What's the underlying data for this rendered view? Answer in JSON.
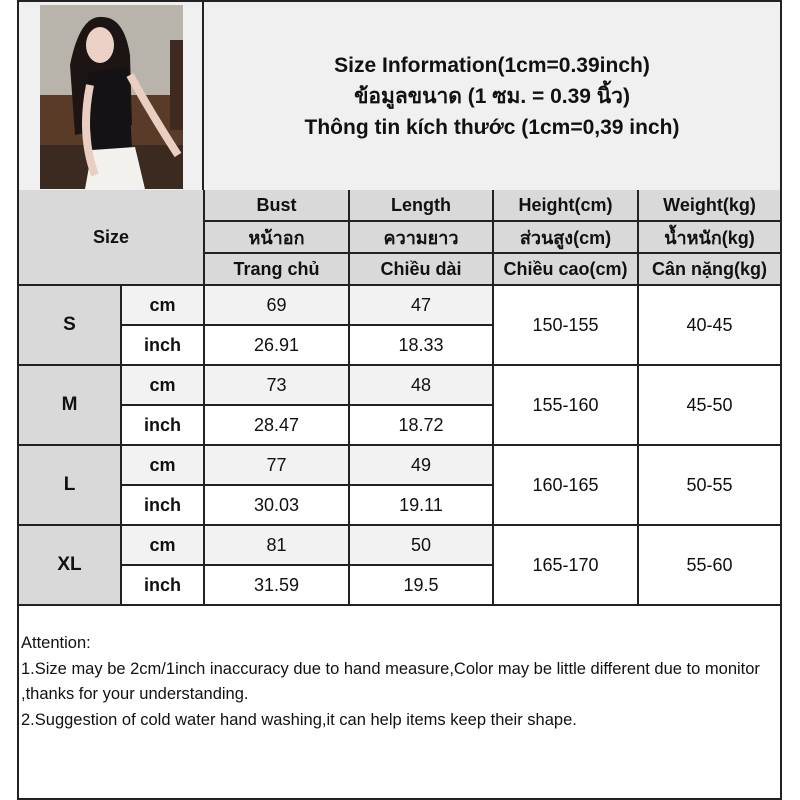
{
  "title": {
    "line1": "Size Information(1cm=0.39inch)",
    "line2": "ข้อมูลขนาด (1 ซม. = 0.39 นิ้ว)",
    "line3": "Thông tin kích thước (1cm=0,39 inch)"
  },
  "photo": {
    "description": "product-model-photo"
  },
  "table": {
    "size_header": "Size",
    "columns": [
      {
        "en": "Bust",
        "th": "หน้าอก",
        "vi": "Trang chủ"
      },
      {
        "en": "Length",
        "th": "ความยาว",
        "vi": "Chiều dài"
      },
      {
        "en": "Height(cm)",
        "th": "ส่วนสูง(cm)",
        "vi": "Chiều cao(cm)"
      },
      {
        "en": "Weight(kg)",
        "th": "น้ำหนัก(kg)",
        "vi": "Cân nặng(kg)"
      }
    ],
    "rows": [
      {
        "size": "S",
        "cm_label": "cm",
        "inch_label": "inch",
        "bust_cm": "69",
        "length_cm": "47",
        "bust_inch": "26.91",
        "length_inch": "18.33",
        "height": "150-155",
        "weight": "40-45"
      },
      {
        "size": "M",
        "cm_label": "cm",
        "inch_label": "inch",
        "bust_cm": "73",
        "length_cm": "48",
        "bust_inch": "28.47",
        "length_inch": "18.72",
        "height": "155-160",
        "weight": "45-50"
      },
      {
        "size": "L",
        "cm_label": "cm",
        "inch_label": "inch",
        "bust_cm": "77",
        "length_cm": "49",
        "bust_inch": "30.03",
        "length_inch": "19.11",
        "height": "160-165",
        "weight": "50-55"
      },
      {
        "size": "XL",
        "cm_label": "cm",
        "inch_label": "inch",
        "bust_cm": "81",
        "length_cm": "50",
        "bust_inch": "31.59",
        "length_inch": "19.5",
        "height": "165-170",
        "weight": "55-60"
      }
    ]
  },
  "attention": {
    "heading": "Attention:",
    "note1": "1.Size may be 2cm/1inch inaccuracy due to hand measure,Color may be little different due to monitor ,thanks for your understanding.",
    "note2": "2.Suggestion of cold water hand washing,it can help items keep their shape."
  },
  "colors": {
    "header_bg": "#d9d9d9",
    "cm_row_bg": "#f2f2f2",
    "border": "#222222"
  }
}
